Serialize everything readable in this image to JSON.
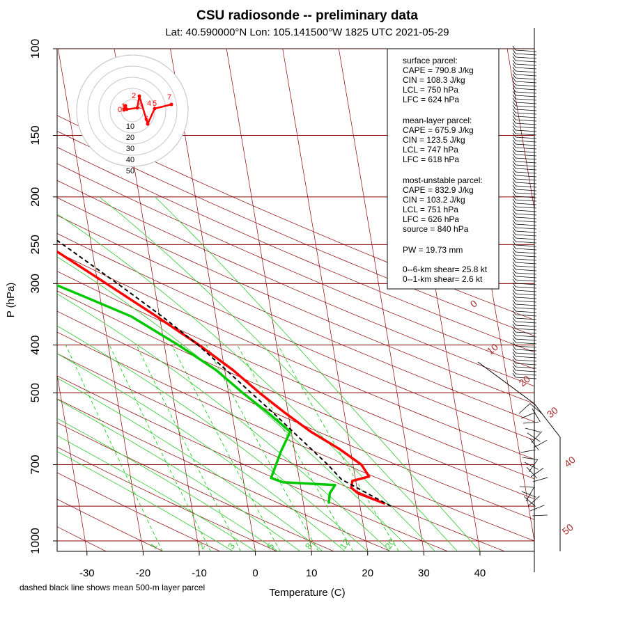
{
  "chart_data": {
    "type": "skewt",
    "title": "CSU radiosonde -- preliminary data",
    "subtitle": "Lat: 40.590000°N Lon: 105.141500°W    1825 UTC  2021-05-29",
    "xlabel": "Temperature (C)",
    "ylabel": "P (hPa)",
    "xticks": [
      -30,
      -20,
      -10,
      0,
      10,
      20,
      30,
      40
    ],
    "pressure_ticks": [
      100,
      150,
      200,
      250,
      300,
      400,
      500,
      700,
      1000
    ],
    "pressure_lines": [
      100,
      150,
      200,
      250,
      300,
      400,
      500,
      700,
      850,
      1000
    ],
    "ptop": 100,
    "pbot": 1050,
    "tmin": -35,
    "tmax": 50,
    "skew_per_decade": 53,
    "note": "dashed black line shows mean 500-m layer parcel",
    "mixing_ratio_labels": [
      "1",
      "2",
      "3",
      "5",
      "8",
      "12",
      "20"
    ],
    "mixing_ratios": [
      1,
      2,
      3,
      5,
      8,
      12,
      20
    ],
    "theta_labels": [
      "0",
      "10",
      "20",
      "30",
      "40",
      "50"
    ],
    "temperature_profile": [
      {
        "p": 840,
        "t": 24.5
      },
      {
        "p": 800,
        "t": 20.0
      },
      {
        "p": 780,
        "t": 19.0
      },
      {
        "p": 755,
        "t": 19.4
      },
      {
        "p": 740,
        "t": 22.5
      },
      {
        "p": 700,
        "t": 21.5
      },
      {
        "p": 650,
        "t": 18.0
      },
      {
        "p": 600,
        "t": 13.5
      },
      {
        "p": 550,
        "t": 9.5
      },
      {
        "p": 500,
        "t": 5.5
      },
      {
        "p": 450,
        "t": 1.5
      },
      {
        "p": 400,
        "t": -3.8
      },
      {
        "p": 350,
        "t": -10.5
      },
      {
        "p": 300,
        "t": -18.5
      },
      {
        "p": 250,
        "t": -28.0
      },
      {
        "p": 220,
        "t": -34.5
      },
      {
        "p": 200,
        "t": -39.0
      },
      {
        "p": 190,
        "t": -39.0
      },
      {
        "p": 175,
        "t": -36.5
      },
      {
        "p": 160,
        "t": -38.0
      },
      {
        "p": 150,
        "t": -41.5
      },
      {
        "p": 140,
        "t": -43.5
      },
      {
        "p": 125,
        "t": -47.0
      },
      {
        "p": 110,
        "t": -50.0
      },
      {
        "p": 100,
        "t": -53.0
      }
    ],
    "dewpoint_profile": [
      {
        "p": 840,
        "t": 14.5
      },
      {
        "p": 800,
        "t": 15.0
      },
      {
        "p": 770,
        "t": 16.2
      },
      {
        "p": 760,
        "t": 7.0
      },
      {
        "p": 745,
        "t": 5.0
      },
      {
        "p": 710,
        "t": 6.0
      },
      {
        "p": 660,
        "t": 7.5
      },
      {
        "p": 600,
        "t": 9.8
      },
      {
        "p": 550,
        "t": 6.5
      },
      {
        "p": 500,
        "t": 2.5
      },
      {
        "p": 450,
        "t": -1.5
      },
      {
        "p": 400,
        "t": -7.5
      },
      {
        "p": 350,
        "t": -15.0
      },
      {
        "p": 320,
        "t": -22.5
      },
      {
        "p": 300,
        "t": -28.0
      },
      {
        "p": 270,
        "t": -32.0
      },
      {
        "p": 240,
        "t": -37.0
      },
      {
        "p": 220,
        "t": -42.0
      },
      {
        "p": 200,
        "t": -46.0
      },
      {
        "p": 180,
        "t": -50.0
      },
      {
        "p": 170,
        "t": -54.0
      }
    ],
    "dewpoint_upper": [
      {
        "p": 120,
        "t": -82.0
      },
      {
        "p": 108,
        "t": -81.0
      },
      {
        "p": 100,
        "t": -80.0
      }
    ],
    "parcel_trace": [
      {
        "p": 850,
        "t": 25.5
      },
      {
        "p": 750,
        "t": 17.5
      },
      {
        "p": 700,
        "t": 15.5
      },
      {
        "p": 650,
        "t": 13.0
      },
      {
        "p": 600,
        "t": 10.3
      },
      {
        "p": 550,
        "t": 7.4
      },
      {
        "p": 500,
        "t": 4.0
      },
      {
        "p": 450,
        "t": 0.3
      },
      {
        "p": 400,
        "t": -4.0
      },
      {
        "p": 350,
        "t": -9.5
      },
      {
        "p": 300,
        "t": -16.5
      },
      {
        "p": 250,
        "t": -25.0
      },
      {
        "p": 200,
        "t": -36.0
      },
      {
        "p": 170,
        "t": -44.0
      },
      {
        "p": 150,
        "t": -50.0
      },
      {
        "p": 125,
        "t": -59.0
      },
      {
        "p": 110,
        "t": -65.5
      },
      {
        "p": 100,
        "t": -70.5
      }
    ],
    "hodograph": {
      "rings": [
        "10",
        "20",
        "30",
        "40",
        "50"
      ],
      "labels": [
        "0",
        "1",
        "2",
        "3",
        "4",
        "5",
        "6",
        "7"
      ]
    },
    "parcel_info": {
      "surface": {
        "header": "surface parcel:",
        "cape": "CAPE = 790.8 J/kg",
        "cin": "CIN = 108.3 J/kg",
        "lcl": "LCL = 750 hPa",
        "lfc": "LFC = 624 hPa"
      },
      "mean_layer": {
        "header": "mean-layer parcel:",
        "cape": "CAPE = 675.9 J/kg",
        "cin": "CIN = 123.5 J/kg",
        "lcl": "LCL = 747 hPa",
        "lfc": "LFC = 618 hPa"
      },
      "most_unstable": {
        "header": "most-unstable parcel:",
        "cape": "CAPE = 832.9 J/kg",
        "cin": "CIN = 103.2 J/kg",
        "lcl": "LCL = 751 hPa",
        "lfc": "LFC = 626 hPa",
        "source": "source = 840 hPa"
      },
      "pw": "PW =  19.73 mm",
      "shear_6km": "0--6-km shear= 25.8 kt",
      "shear_1km": "0--1-km shear= 2.6 kt"
    },
    "colors": {
      "temperature": "#ff0000",
      "dewpoint": "#00c800",
      "parcel": "#000000",
      "grid": "#8b0000",
      "mixing": "#00c800",
      "adiabat": "#2ec82e",
      "theta_label": "#a52a2a",
      "hodo_ring": "#c8c8c8"
    }
  }
}
